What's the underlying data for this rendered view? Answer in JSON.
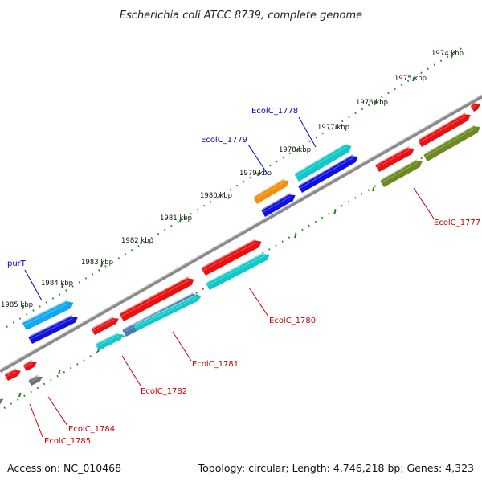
{
  "title": "Escherichia coli ATCC 8739, complete genome",
  "footer": {
    "accession": "Accession: NC_010468",
    "summary": "Topology: circular; Length: 4,746,218 bp; Genes: 4,323"
  },
  "scale_ticks": [
    "1974 kbp",
    "1975 kbp",
    "1976 kbp",
    "1977 kbp",
    "1978 kbp",
    "1979 kbp",
    "1980 kbp",
    "1981 kbp",
    "1982 kbp",
    "1983 kbp",
    "1984 kbp",
    "1985 kbp"
  ],
  "labels": {
    "EcolC_1778": "EcolC_1778",
    "EcolC_1779": "EcolC_1779",
    "purT": "purT",
    "EcolC_1777": "EcolC_1777",
    "EcolC_1780": "EcolC_1780",
    "EcolC_1781": "EcolC_1781",
    "EcolC_1782": "EcolC_1782",
    "EcolC_1784": "EcolC_1784",
    "EcolC_1785": "EcolC_1785"
  },
  "colors": {
    "link_label": "#0000cc",
    "callout_label": "#cc0000",
    "dots": "#2a8a2a",
    "backbone": "#888888",
    "red": "#e81010",
    "blue": "#1010e0",
    "cyan": "#10c8c8",
    "skyblue": "#10a8f0",
    "orange": "#f09010",
    "olive": "#6a8a20",
    "steel": "#4a78b0",
    "gray": "#707070"
  }
}
